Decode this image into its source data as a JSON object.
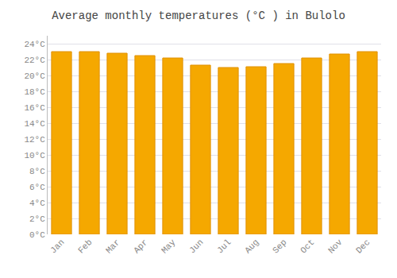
{
  "chart_data": {
    "type": "bar",
    "title": "Average monthly temperatures (°C ) in Bulolo",
    "categories": [
      "Jan",
      "Feb",
      "Mar",
      "Apr",
      "May",
      "Jun",
      "Jul",
      "Aug",
      "Sep",
      "Oct",
      "Nov",
      "Dec"
    ],
    "values": [
      23.0,
      23.0,
      22.8,
      22.5,
      22.2,
      21.3,
      21.0,
      21.1,
      21.5,
      22.2,
      22.7,
      23.0
    ],
    "color": "#F5A800",
    "ylim": [
      0,
      25
    ],
    "yticks": [
      {
        "value": 0,
        "label": "0°C"
      },
      {
        "value": 2,
        "label": "2°C"
      },
      {
        "value": 4,
        "label": "4°C"
      },
      {
        "value": 6,
        "label": "6°C"
      },
      {
        "value": 8,
        "label": "8°C"
      },
      {
        "value": 10,
        "label": "10°C"
      },
      {
        "value": 12,
        "label": "12°C"
      },
      {
        "value": 14,
        "label": "14°C"
      },
      {
        "value": 16,
        "label": "16°C"
      },
      {
        "value": 18,
        "label": "18°C"
      },
      {
        "value": 20,
        "label": "20°C"
      },
      {
        "value": 22,
        "label": "22°C"
      },
      {
        "value": 24,
        "label": "24°C"
      }
    ],
    "grid": true
  }
}
